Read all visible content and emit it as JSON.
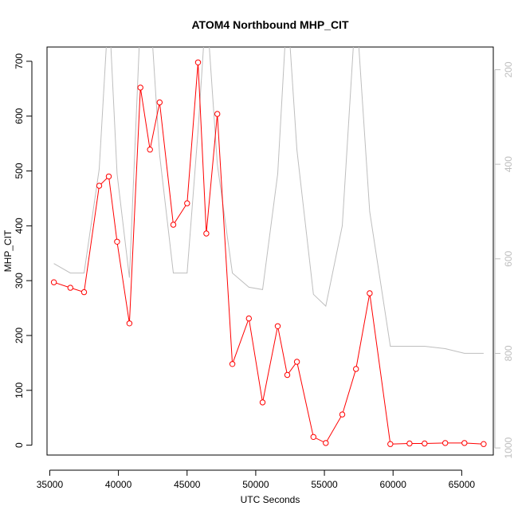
{
  "chart_data": {
    "type": "line",
    "title": "ATOM4 Northbound MHP_CIT",
    "xlabel": "UTC Seconds",
    "ylabel": "MHP_CIT",
    "xlim": [
      34800,
      67300
    ],
    "ylim": [
      -18,
      726
    ],
    "x_ticks": [
      35000,
      40000,
      45000,
      50000,
      55000,
      60000,
      65000
    ],
    "x_tick_labels": [
      "35000",
      "40000",
      "45000",
      "50000",
      "55000",
      "60000",
      "65000"
    ],
    "y_ticks": [
      0,
      100,
      200,
      300,
      400,
      500,
      600,
      700
    ],
    "y_tick_labels": [
      "0",
      "100",
      "200",
      "300",
      "400",
      "500",
      "600",
      "700"
    ],
    "y2_ticks": [
      200,
      400,
      600,
      800,
      1000
    ],
    "y2_tick_labels": [
      "200",
      "400",
      "600",
      "800",
      "1000"
    ],
    "y2lim": [
      1015,
      152
    ],
    "y2_inverted": true,
    "grid": false,
    "series": [
      {
        "color": "#ff0000",
        "marker": "open-circle",
        "axis": "left",
        "x": [
          35300,
          36500,
          37500,
          38600,
          39300,
          39900,
          40800,
          41600,
          42300,
          43000,
          44000,
          45000,
          45800,
          46400,
          47200,
          48300,
          49500,
          50500,
          51600,
          52300,
          53000,
          54200,
          55100,
          56300,
          57300,
          58300,
          59800,
          61200,
          62300,
          63800,
          65200,
          66600
        ],
        "values": [
          297,
          287,
          279,
          473,
          490,
          371,
          222,
          652,
          539,
          625,
          402,
          441,
          698,
          386,
          604,
          148,
          231,
          78,
          217,
          128,
          152,
          15,
          4,
          56,
          139,
          277,
          2,
          3,
          3,
          4,
          4,
          2
        ]
      },
      {
        "color": "#bebebe",
        "marker": "none",
        "axis": "right",
        "x": [
          35300,
          36500,
          37500,
          38600,
          39300,
          39900,
          40800,
          41600,
          42300,
          43000,
          44000,
          45000,
          45800,
          46400,
          47200,
          48300,
          49500,
          50500,
          51600,
          52300,
          53000,
          54200,
          55100,
          56300,
          57300,
          58300,
          59800,
          61200,
          62300,
          63800,
          65200,
          66600
        ],
        "values": [
          610,
          630,
          630,
          410,
          60,
          420,
          640,
          90,
          60,
          380,
          630,
          630,
          330,
          60,
          400,
          630,
          660,
          665,
          420,
          60,
          370,
          675,
          700,
          530,
          60,
          500,
          785,
          785,
          785,
          790,
          800,
          800
        ]
      }
    ]
  }
}
